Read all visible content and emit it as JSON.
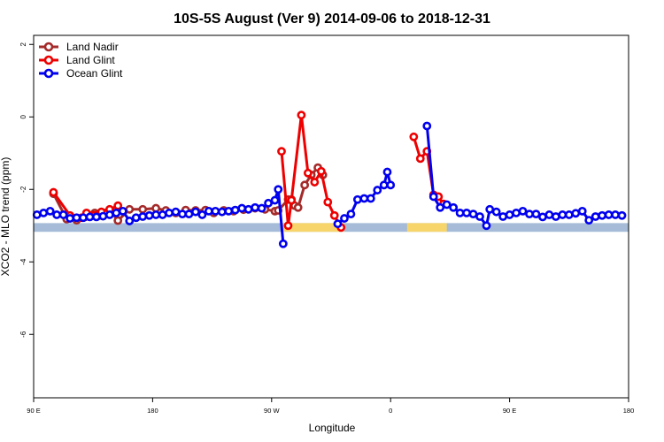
{
  "chart_data": {
    "type": "line",
    "title": "10S-5S August (Ver 9)   2014-09-06 to 2018-12-31",
    "xlabel": "Longitude",
    "ylabel": "XCO2 - MLO trend (ppm)",
    "xlim": [
      90,
      450
    ],
    "ylim": [
      -7.75,
      2.25
    ],
    "xticks": [
      {
        "value": 90,
        "label": "90 E"
      },
      {
        "value": 162,
        "label": "180"
      },
      {
        "value": 234,
        "label": "90 W"
      },
      {
        "value": 306,
        "label": "0"
      },
      {
        "value": 378,
        "label": "90 E"
      },
      {
        "value": 450,
        "label": "180"
      }
    ],
    "yticks": [
      {
        "value": 2,
        "label": "2"
      },
      {
        "value": 0,
        "label": "0"
      },
      {
        "value": -2,
        "label": "-2"
      },
      {
        "value": -4,
        "label": "-4"
      },
      {
        "value": -6,
        "label": "-6"
      }
    ],
    "grid": false,
    "legend_position": "top-left",
    "land_strip": {
      "y_range": [
        -3.17,
        -2.93
      ],
      "ocean_color": "#a5bbd7",
      "land_color": "#f7d56b",
      "land_segments": [
        [
          240,
          278
        ],
        [
          316,
          340
        ]
      ]
    },
    "series": [
      {
        "name": "Land Nadir",
        "color": "#a52a2a",
        "segments": [
          [
            [
              102,
              -2.12
            ],
            [
              110,
              -2.82
            ],
            [
              116,
              -2.85
            ],
            [
              121,
              -2.76
            ],
            [
              127,
              -2.65
            ],
            [
              130,
              -2.72
            ],
            [
              133,
              -2.65
            ],
            [
              137,
              -2.62
            ],
            [
              141,
              -2.86
            ],
            [
              148,
              -2.55
            ],
            [
              156,
              -2.55
            ],
            [
              164,
              -2.52
            ],
            [
              170,
              -2.58
            ],
            [
              176,
              -2.65
            ],
            [
              182,
              -2.57
            ],
            [
              188,
              -2.58
            ],
            [
              194,
              -2.57
            ],
            [
              199,
              -2.65
            ],
            [
              205,
              -2.58
            ],
            [
              211,
              -2.6
            ],
            [
              217,
              -2.56
            ],
            [
              224,
              -2.52
            ],
            [
              230,
              -2.55
            ],
            [
              236,
              -2.6
            ],
            [
              238,
              -2.58
            ],
            [
              244,
              -2.28
            ],
            [
              246,
              -2.28
            ],
            [
              248,
              -2.45
            ],
            [
              250,
              -2.5
            ],
            [
              254,
              -1.88
            ],
            [
              258,
              -1.6
            ],
            [
              262,
              -1.4
            ],
            [
              265,
              -1.6
            ]
          ]
        ]
      },
      {
        "name": "Land Glint",
        "color": "#ee0000",
        "segments": [
          [
            [
              102,
              -2.08
            ],
            [
              112,
              -2.72
            ],
            [
              119,
              -2.78
            ],
            [
              122,
              -2.65
            ],
            [
              131,
              -2.62
            ],
            [
              136,
              -2.55
            ],
            [
              141,
              -2.45
            ]
          ],
          [
            [
              240,
              -0.95
            ],
            [
              244,
              -3.0
            ],
            [
              246,
              -2.3
            ],
            [
              252,
              0.05
            ],
            [
              256,
              -1.55
            ],
            [
              260,
              -1.8
            ],
            [
              264,
              -1.5
            ],
            [
              268,
              -2.35
            ],
            [
              272,
              -2.72
            ],
            [
              276,
              -3.05
            ]
          ],
          [
            [
              320,
              -0.55
            ],
            [
              324,
              -1.15
            ],
            [
              328,
              -0.95
            ],
            [
              332,
              -2.15
            ],
            [
              335,
              -2.2
            ],
            [
              338,
              -2.4
            ]
          ]
        ]
      },
      {
        "name": "Ocean Glint",
        "color": "#0000ee",
        "segments": [
          [
            [
              92,
              -2.7
            ],
            [
              96,
              -2.65
            ],
            [
              100,
              -2.6
            ],
            [
              104,
              -2.7
            ],
            [
              108,
              -2.7
            ],
            [
              112,
              -2.8
            ],
            [
              116,
              -2.78
            ],
            [
              120,
              -2.78
            ],
            [
              124,
              -2.76
            ],
            [
              128,
              -2.76
            ],
            [
              132,
              -2.74
            ],
            [
              136,
              -2.7
            ],
            [
              140,
              -2.65
            ],
            [
              144,
              -2.6
            ],
            [
              148,
              -2.87
            ],
            [
              152,
              -2.78
            ],
            [
              156,
              -2.75
            ],
            [
              160,
              -2.72
            ],
            [
              164,
              -2.7
            ],
            [
              168,
              -2.7
            ],
            [
              172,
              -2.65
            ],
            [
              176,
              -2.62
            ],
            [
              180,
              -2.68
            ],
            [
              184,
              -2.68
            ],
            [
              188,
              -2.62
            ],
            [
              192,
              -2.7
            ],
            [
              196,
              -2.6
            ],
            [
              200,
              -2.6
            ],
            [
              204,
              -2.62
            ],
            [
              208,
              -2.6
            ],
            [
              212,
              -2.57
            ],
            [
              216,
              -2.52
            ],
            [
              220,
              -2.55
            ],
            [
              224,
              -2.5
            ],
            [
              228,
              -2.52
            ],
            [
              232,
              -2.38
            ],
            [
              236,
              -2.3
            ],
            [
              238,
              -2.0
            ],
            [
              241,
              -3.5
            ]
          ],
          [
            [
              274,
              -2.95
            ],
            [
              278,
              -2.8
            ],
            [
              282,
              -2.68
            ],
            [
              286,
              -2.28
            ],
            [
              290,
              -2.25
            ],
            [
              294,
              -2.25
            ],
            [
              298,
              -2.02
            ],
            [
              302,
              -1.88
            ],
            [
              304,
              -1.52
            ],
            [
              306,
              -1.88
            ]
          ],
          [
            [
              328,
              -0.25
            ],
            [
              332,
              -2.2
            ],
            [
              336,
              -2.5
            ],
            [
              340,
              -2.42
            ],
            [
              344,
              -2.5
            ],
            [
              348,
              -2.65
            ],
            [
              352,
              -2.65
            ],
            [
              356,
              -2.68
            ],
            [
              360,
              -2.75
            ],
            [
              364,
              -3.0
            ],
            [
              366,
              -2.55
            ],
            [
              370,
              -2.62
            ],
            [
              374,
              -2.75
            ],
            [
              378,
              -2.7
            ],
            [
              382,
              -2.65
            ],
            [
              386,
              -2.6
            ],
            [
              390,
              -2.68
            ],
            [
              394,
              -2.68
            ],
            [
              398,
              -2.76
            ],
            [
              402,
              -2.7
            ],
            [
              406,
              -2.75
            ],
            [
              410,
              -2.7
            ],
            [
              414,
              -2.7
            ],
            [
              418,
              -2.66
            ],
            [
              422,
              -2.6
            ],
            [
              426,
              -2.85
            ],
            [
              430,
              -2.75
            ],
            [
              434,
              -2.72
            ],
            [
              438,
              -2.7
            ],
            [
              442,
              -2.7
            ],
            [
              446,
              -2.72
            ]
          ]
        ]
      }
    ]
  }
}
